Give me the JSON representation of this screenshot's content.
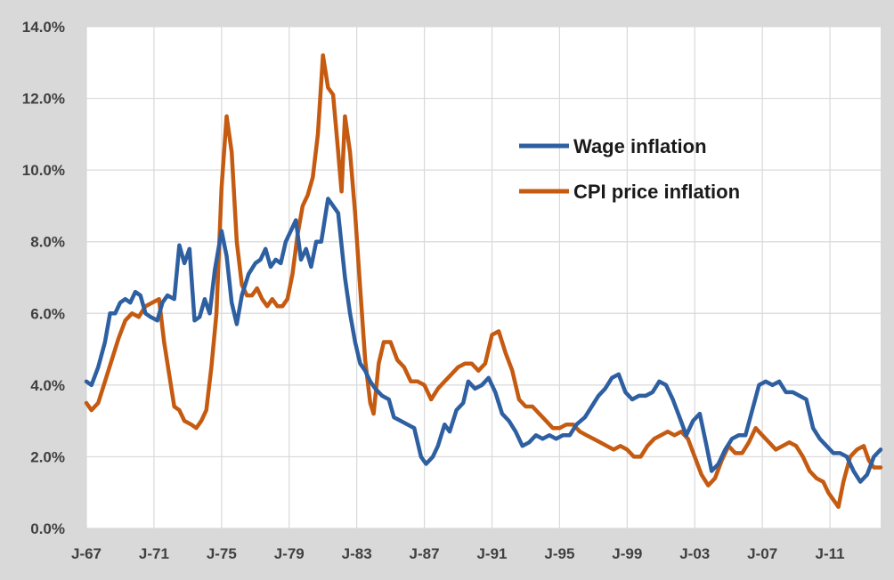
{
  "chart_data": {
    "type": "line",
    "title": "",
    "xlabel": "",
    "ylabel": "",
    "ylim": [
      0,
      14
    ],
    "xlim": [
      1967,
      2014
    ],
    "y_ticks": [
      "0.0%",
      "2.0%",
      "4.0%",
      "6.0%",
      "8.0%",
      "10.0%",
      "12.0%",
      "14.0%"
    ],
    "x_ticks": [
      "J-67",
      "J-71",
      "J-75",
      "J-79",
      "J-83",
      "J-87",
      "J-91",
      "J-95",
      "J-99",
      "J-03",
      "J-07",
      "J-11"
    ],
    "grid": "vertical and horizontal",
    "legend_position": "upper-right inside plot",
    "series": [
      {
        "name": "Wage inflation",
        "color": "#2e5fa1",
        "points": [
          [
            1967.0,
            4.1
          ],
          [
            1967.3,
            4.0
          ],
          [
            1967.7,
            4.5
          ],
          [
            1968.1,
            5.2
          ],
          [
            1968.4,
            6.0
          ],
          [
            1968.7,
            6.0
          ],
          [
            1969.0,
            6.3
          ],
          [
            1969.3,
            6.4
          ],
          [
            1969.6,
            6.3
          ],
          [
            1969.9,
            6.6
          ],
          [
            1970.2,
            6.5
          ],
          [
            1970.5,
            6.0
          ],
          [
            1970.8,
            5.9
          ],
          [
            1971.2,
            5.8
          ],
          [
            1971.5,
            6.3
          ],
          [
            1971.8,
            6.5
          ],
          [
            1972.2,
            6.4
          ],
          [
            1972.5,
            7.9
          ],
          [
            1972.8,
            7.4
          ],
          [
            1973.1,
            7.8
          ],
          [
            1973.4,
            5.8
          ],
          [
            1973.7,
            5.9
          ],
          [
            1974.0,
            6.4
          ],
          [
            1974.3,
            6.0
          ],
          [
            1974.6,
            7.2
          ],
          [
            1975.0,
            8.3
          ],
          [
            1975.3,
            7.6
          ],
          [
            1975.6,
            6.3
          ],
          [
            1975.9,
            5.7
          ],
          [
            1976.2,
            6.5
          ],
          [
            1976.6,
            7.1
          ],
          [
            1977.0,
            7.4
          ],
          [
            1977.3,
            7.5
          ],
          [
            1977.6,
            7.8
          ],
          [
            1977.9,
            7.3
          ],
          [
            1978.2,
            7.5
          ],
          [
            1978.5,
            7.4
          ],
          [
            1978.8,
            8.0
          ],
          [
            1979.1,
            8.3
          ],
          [
            1979.4,
            8.6
          ],
          [
            1979.7,
            7.5
          ],
          [
            1980.0,
            7.8
          ],
          [
            1980.3,
            7.3
          ],
          [
            1980.6,
            8.0
          ],
          [
            1980.9,
            8.0
          ],
          [
            1981.3,
            9.2
          ],
          [
            1981.6,
            9.0
          ],
          [
            1981.9,
            8.8
          ],
          [
            1982.3,
            7.0
          ],
          [
            1982.6,
            6.0
          ],
          [
            1982.9,
            5.2
          ],
          [
            1983.2,
            4.6
          ],
          [
            1983.5,
            4.4
          ],
          [
            1983.8,
            4.1
          ],
          [
            1984.1,
            3.9
          ],
          [
            1984.5,
            3.7
          ],
          [
            1984.9,
            3.6
          ],
          [
            1985.2,
            3.1
          ],
          [
            1985.6,
            3.0
          ],
          [
            1986.0,
            2.9
          ],
          [
            1986.4,
            2.8
          ],
          [
            1986.8,
            2.0
          ],
          [
            1987.1,
            1.8
          ],
          [
            1987.5,
            2.0
          ],
          [
            1987.8,
            2.3
          ],
          [
            1988.2,
            2.9
          ],
          [
            1988.5,
            2.7
          ],
          [
            1988.9,
            3.3
          ],
          [
            1989.3,
            3.5
          ],
          [
            1989.6,
            4.1
          ],
          [
            1990.0,
            3.9
          ],
          [
            1990.4,
            4.0
          ],
          [
            1990.8,
            4.2
          ],
          [
            1991.2,
            3.8
          ],
          [
            1991.6,
            3.2
          ],
          [
            1992.0,
            3.0
          ],
          [
            1992.4,
            2.7
          ],
          [
            1992.8,
            2.3
          ],
          [
            1993.2,
            2.4
          ],
          [
            1993.6,
            2.6
          ],
          [
            1994.0,
            2.5
          ],
          [
            1994.4,
            2.6
          ],
          [
            1994.8,
            2.5
          ],
          [
            1995.2,
            2.6
          ],
          [
            1995.6,
            2.6
          ],
          [
            1996.0,
            2.9
          ],
          [
            1996.5,
            3.1
          ],
          [
            1996.9,
            3.4
          ],
          [
            1997.3,
            3.7
          ],
          [
            1997.7,
            3.9
          ],
          [
            1998.1,
            4.2
          ],
          [
            1998.5,
            4.3
          ],
          [
            1998.9,
            3.8
          ],
          [
            1999.3,
            3.6
          ],
          [
            1999.7,
            3.7
          ],
          [
            2000.1,
            3.7
          ],
          [
            2000.5,
            3.8
          ],
          [
            2000.9,
            4.1
          ],
          [
            2001.3,
            4.0
          ],
          [
            2001.7,
            3.6
          ],
          [
            2002.1,
            3.1
          ],
          [
            2002.5,
            2.6
          ],
          [
            2002.9,
            3.0
          ],
          [
            2003.3,
            3.2
          ],
          [
            2003.7,
            2.3
          ],
          [
            2004.0,
            1.6
          ],
          [
            2004.4,
            1.8
          ],
          [
            2004.8,
            2.2
          ],
          [
            2005.2,
            2.5
          ],
          [
            2005.6,
            2.6
          ],
          [
            2006.0,
            2.6
          ],
          [
            2006.4,
            3.3
          ],
          [
            2006.8,
            4.0
          ],
          [
            2007.2,
            4.1
          ],
          [
            2007.6,
            4.0
          ],
          [
            2008.0,
            4.1
          ],
          [
            2008.4,
            3.8
          ],
          [
            2008.8,
            3.8
          ],
          [
            2009.2,
            3.7
          ],
          [
            2009.6,
            3.6
          ],
          [
            2010.0,
            2.8
          ],
          [
            2010.4,
            2.5
          ],
          [
            2010.8,
            2.3
          ],
          [
            2011.2,
            2.1
          ],
          [
            2011.6,
            2.1
          ],
          [
            2012.0,
            2.0
          ],
          [
            2012.4,
            1.6
          ],
          [
            2012.8,
            1.3
          ],
          [
            2013.2,
            1.5
          ],
          [
            2013.6,
            2.0
          ],
          [
            2014.0,
            2.2
          ]
        ]
      },
      {
        "name": "CPI price inflation",
        "color": "#c55a11",
        "points": [
          [
            1967.0,
            3.5
          ],
          [
            1967.3,
            3.3
          ],
          [
            1967.7,
            3.5
          ],
          [
            1968.1,
            4.1
          ],
          [
            1968.5,
            4.7
          ],
          [
            1968.9,
            5.3
          ],
          [
            1969.3,
            5.8
          ],
          [
            1969.7,
            6.0
          ],
          [
            1970.1,
            5.9
          ],
          [
            1970.5,
            6.2
          ],
          [
            1970.9,
            6.3
          ],
          [
            1971.3,
            6.4
          ],
          [
            1971.6,
            5.2
          ],
          [
            1971.9,
            4.3
          ],
          [
            1972.2,
            3.4
          ],
          [
            1972.5,
            3.3
          ],
          [
            1972.8,
            3.0
          ],
          [
            1973.2,
            2.9
          ],
          [
            1973.5,
            2.8
          ],
          [
            1973.8,
            3.0
          ],
          [
            1974.1,
            3.3
          ],
          [
            1974.4,
            4.5
          ],
          [
            1974.7,
            6.0
          ],
          [
            1975.0,
            9.5
          ],
          [
            1975.3,
            11.5
          ],
          [
            1975.6,
            10.5
          ],
          [
            1975.9,
            8.0
          ],
          [
            1976.2,
            6.8
          ],
          [
            1976.5,
            6.5
          ],
          [
            1976.8,
            6.5
          ],
          [
            1977.1,
            6.7
          ],
          [
            1977.4,
            6.4
          ],
          [
            1977.7,
            6.2
          ],
          [
            1978.0,
            6.4
          ],
          [
            1978.3,
            6.2
          ],
          [
            1978.6,
            6.2
          ],
          [
            1978.9,
            6.4
          ],
          [
            1979.2,
            7.1
          ],
          [
            1979.5,
            8.2
          ],
          [
            1979.8,
            9.0
          ],
          [
            1980.1,
            9.3
          ],
          [
            1980.4,
            9.8
          ],
          [
            1980.7,
            11.0
          ],
          [
            1981.0,
            13.2
          ],
          [
            1981.3,
            12.3
          ],
          [
            1981.6,
            12.1
          ],
          [
            1981.9,
            10.5
          ],
          [
            1982.1,
            9.4
          ],
          [
            1982.3,
            11.5
          ],
          [
            1982.6,
            10.5
          ],
          [
            1982.9,
            8.8
          ],
          [
            1983.2,
            6.7
          ],
          [
            1983.5,
            4.7
          ],
          [
            1983.8,
            3.5
          ],
          [
            1984.0,
            3.2
          ],
          [
            1984.3,
            4.6
          ],
          [
            1984.6,
            5.2
          ],
          [
            1985.0,
            5.2
          ],
          [
            1985.4,
            4.7
          ],
          [
            1985.8,
            4.5
          ],
          [
            1986.2,
            4.1
          ],
          [
            1986.6,
            4.1
          ],
          [
            1987.0,
            4.0
          ],
          [
            1987.4,
            3.6
          ],
          [
            1987.8,
            3.9
          ],
          [
            1988.2,
            4.1
          ],
          [
            1988.6,
            4.3
          ],
          [
            1989.0,
            4.5
          ],
          [
            1989.4,
            4.6
          ],
          [
            1989.8,
            4.6
          ],
          [
            1990.2,
            4.4
          ],
          [
            1990.6,
            4.6
          ],
          [
            1991.0,
            5.4
          ],
          [
            1991.4,
            5.5
          ],
          [
            1991.8,
            4.9
          ],
          [
            1992.2,
            4.4
          ],
          [
            1992.6,
            3.6
          ],
          [
            1993.0,
            3.4
          ],
          [
            1993.4,
            3.4
          ],
          [
            1993.8,
            3.2
          ],
          [
            1994.2,
            3.0
          ],
          [
            1994.6,
            2.8
          ],
          [
            1995.0,
            2.8
          ],
          [
            1995.4,
            2.9
          ],
          [
            1995.8,
            2.9
          ],
          [
            1996.2,
            2.7
          ],
          [
            1996.6,
            2.6
          ],
          [
            1997.0,
            2.5
          ],
          [
            1997.4,
            2.4
          ],
          [
            1997.8,
            2.3
          ],
          [
            1998.2,
            2.2
          ],
          [
            1998.6,
            2.3
          ],
          [
            1999.0,
            2.2
          ],
          [
            1999.4,
            2.0
          ],
          [
            1999.8,
            2.0
          ],
          [
            2000.2,
            2.3
          ],
          [
            2000.6,
            2.5
          ],
          [
            2001.0,
            2.6
          ],
          [
            2001.4,
            2.7
          ],
          [
            2001.8,
            2.6
          ],
          [
            2002.2,
            2.7
          ],
          [
            2002.6,
            2.5
          ],
          [
            2003.0,
            2.0
          ],
          [
            2003.4,
            1.5
          ],
          [
            2003.8,
            1.2
          ],
          [
            2004.2,
            1.4
          ],
          [
            2004.6,
            1.9
          ],
          [
            2005.0,
            2.3
          ],
          [
            2005.4,
            2.1
          ],
          [
            2005.8,
            2.1
          ],
          [
            2006.2,
            2.4
          ],
          [
            2006.6,
            2.8
          ],
          [
            2007.0,
            2.6
          ],
          [
            2007.4,
            2.4
          ],
          [
            2007.8,
            2.2
          ],
          [
            2008.2,
            2.3
          ],
          [
            2008.6,
            2.4
          ],
          [
            2009.0,
            2.3
          ],
          [
            2009.4,
            2.0
          ],
          [
            2009.8,
            1.6
          ],
          [
            2010.2,
            1.4
          ],
          [
            2010.6,
            1.3
          ],
          [
            2010.9,
            1.0
          ],
          [
            2011.2,
            0.8
          ],
          [
            2011.5,
            0.6
          ],
          [
            2011.8,
            1.3
          ],
          [
            2012.2,
            2.0
          ],
          [
            2012.6,
            2.2
          ],
          [
            2013.0,
            2.3
          ],
          [
            2013.3,
            1.9
          ],
          [
            2013.6,
            1.7
          ],
          [
            2014.0,
            1.7
          ]
        ]
      }
    ]
  }
}
